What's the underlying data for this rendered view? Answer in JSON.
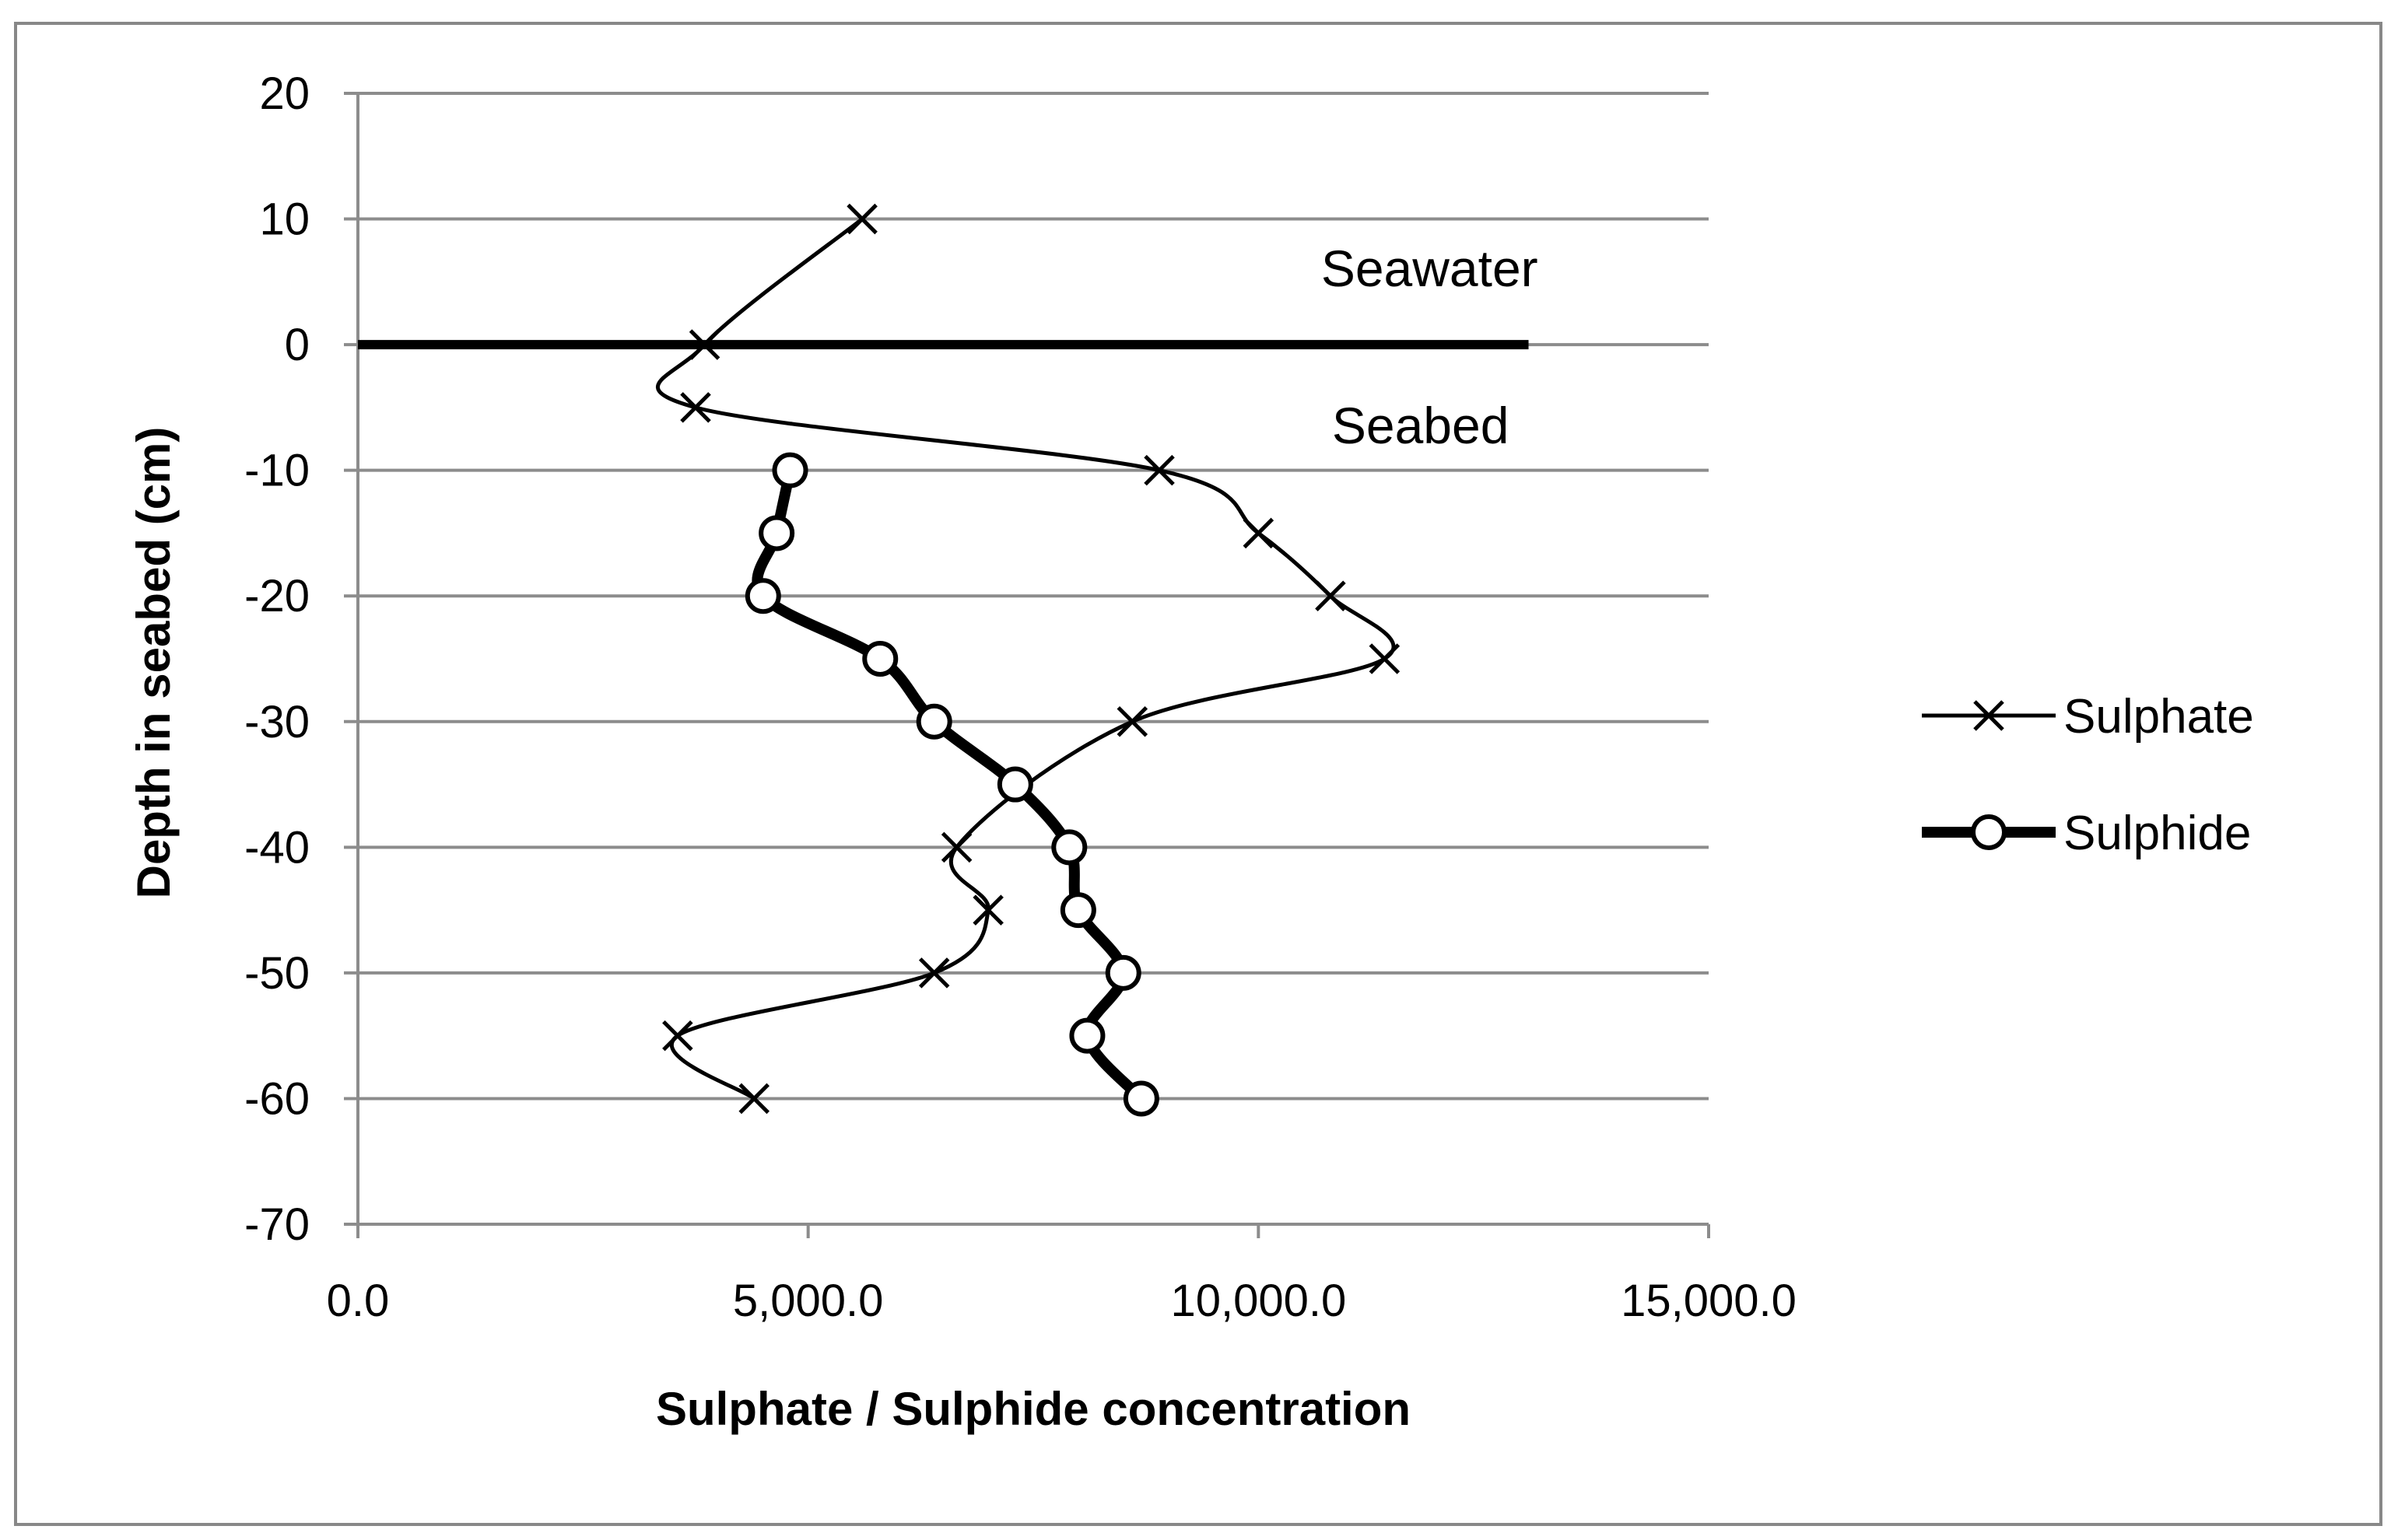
{
  "chart_data": {
    "type": "scatter",
    "xlabel": "Sulphate / Sulphide concentration",
    "ylabel": "Depth in seabed (cm)",
    "xlim": [
      0,
      15000
    ],
    "ylim": [
      -70,
      20
    ],
    "x_ticks": [
      0,
      5000,
      10000,
      15000
    ],
    "x_tick_labels": [
      "0.0",
      "5,000.0",
      "10,000.0",
      "15,000.0"
    ],
    "y_ticks": [
      20,
      10,
      0,
      -10,
      -20,
      -30,
      -40,
      -50,
      -60,
      -70
    ],
    "y_tick_labels": [
      "20",
      "10",
      "0",
      "-10",
      "-20",
      "-30",
      "-40",
      "-50",
      "-60",
      "-70"
    ],
    "grid": "horizontal",
    "legend_position": "right",
    "series": [
      {
        "name": "Sulphate",
        "marker": "x",
        "line": "thin smooth",
        "points": [
          {
            "x": 5600,
            "y": 10
          },
          {
            "x": 3850,
            "y": 0
          },
          {
            "x": 3750,
            "y": -5
          },
          {
            "x": 8900,
            "y": -10
          },
          {
            "x": 10000,
            "y": -15
          },
          {
            "x": 10800,
            "y": -20
          },
          {
            "x": 11400,
            "y": -25
          },
          {
            "x": 8600,
            "y": -30
          },
          {
            "x": 6650,
            "y": -40
          },
          {
            "x": 7000,
            "y": -45
          },
          {
            "x": 6400,
            "y": -50
          },
          {
            "x": 3550,
            "y": -55
          },
          {
            "x": 4400,
            "y": -60
          }
        ]
      },
      {
        "name": "Sulphide",
        "marker": "circle",
        "line": "thick smooth",
        "points": [
          {
            "x": 4800,
            "y": -10
          },
          {
            "x": 4650,
            "y": -15
          },
          {
            "x": 4500,
            "y": -20
          },
          {
            "x": 5800,
            "y": -25
          },
          {
            "x": 6400,
            "y": -30
          },
          {
            "x": 7300,
            "y": -35
          },
          {
            "x": 7900,
            "y": -40
          },
          {
            "x": 8000,
            "y": -45
          },
          {
            "x": 8500,
            "y": -50
          },
          {
            "x": 8100,
            "y": -55
          },
          {
            "x": 8700,
            "y": -60
          }
        ]
      }
    ],
    "reference_line": {
      "y": 0,
      "x_from": 0,
      "x_to": 13000
    },
    "annotations": [
      {
        "text": "Seawater",
        "x": 11900,
        "y": 6
      },
      {
        "text": "Seabed",
        "x": 11800,
        "y": -6.5
      }
    ]
  }
}
